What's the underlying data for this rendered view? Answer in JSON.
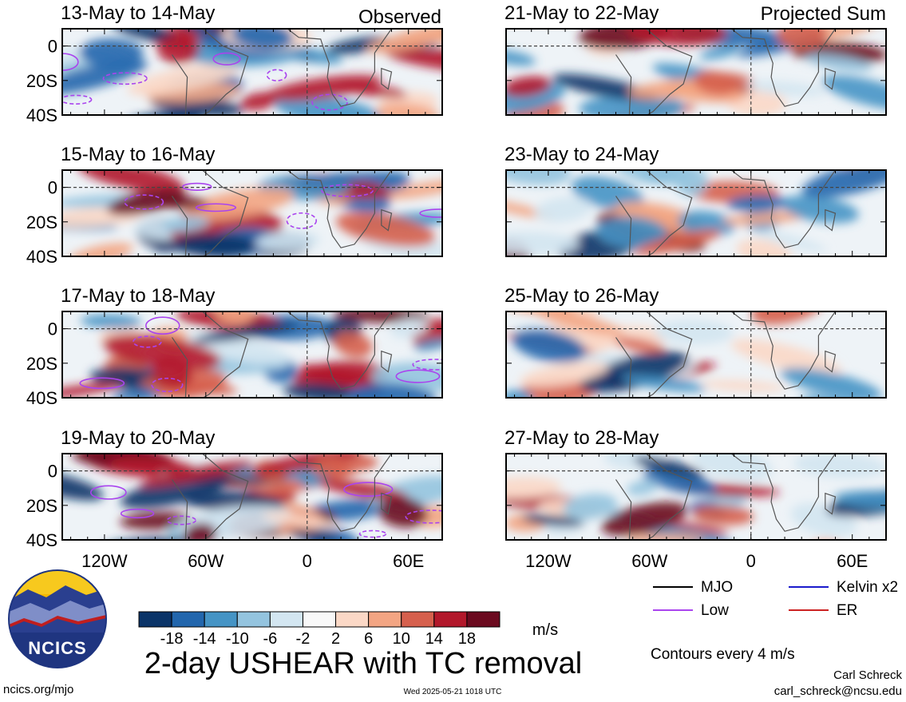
{
  "header": {
    "left_label": "Observed",
    "right_label": "Projected Sum"
  },
  "panels": [
    {
      "date_range": "13-May to 14-May",
      "column": "observed"
    },
    {
      "date_range": "15-May to 16-May",
      "column": "observed"
    },
    {
      "date_range": "17-May to 18-May",
      "column": "observed"
    },
    {
      "date_range": "19-May to 20-May",
      "column": "observed"
    },
    {
      "date_range": "21-May to 22-May",
      "column": "projected"
    },
    {
      "date_range": "23-May to 24-May",
      "column": "projected"
    },
    {
      "date_range": "25-May to 26-May",
      "column": "projected"
    },
    {
      "date_range": "27-May to 28-May",
      "column": "projected"
    }
  ],
  "chart_data": {
    "type": "heatmap",
    "title": "2-day USHEAR with TC removal",
    "lon_ticks": [
      "120W",
      "60W",
      "0",
      "60E"
    ],
    "lon_tick_values": [
      -120,
      -60,
      0,
      60
    ],
    "lat_ticks": [
      "0",
      "20S",
      "40S"
    ],
    "lat_tick_values": [
      0,
      -20,
      -40
    ],
    "xlim": [
      -145,
      80
    ],
    "ylim": [
      -40,
      10
    ],
    "reference_lines": {
      "lat": 0,
      "lon": 0
    },
    "colorbar": {
      "unit": "m/s",
      "labels": [
        "-18",
        "-14",
        "-10",
        "-6",
        "-2",
        "2",
        "6",
        "10",
        "14",
        "18"
      ],
      "levels": [
        -18,
        -14,
        -10,
        -6,
        -2,
        2,
        6,
        10,
        14,
        18
      ],
      "colors": [
        "#0b3468",
        "#2266ad",
        "#4594c5",
        "#94c4df",
        "#d3e6f1",
        "#f8f8f8",
        "#fbd8c6",
        "#f3a583",
        "#d6604d",
        "#b2182b",
        "#6b0a1f"
      ]
    },
    "contour_interval_text": "Contours every 4 m/s",
    "legend": [
      {
        "label": "MJO",
        "color": "#000000"
      },
      {
        "label": "Kelvin x2",
        "color": "#1a1acc"
      },
      {
        "label": "Low",
        "color": "#aa44ee"
      },
      {
        "label": "ER",
        "color": "#cc2222"
      }
    ]
  },
  "footer": {
    "logo_text": "NCICS",
    "url": "ncics.org/mjo",
    "timestamp": "Wed 2025-05-21 1018 UTC",
    "author": "Carl Schreck",
    "email": "carl_schreck@ncsu.edu"
  }
}
